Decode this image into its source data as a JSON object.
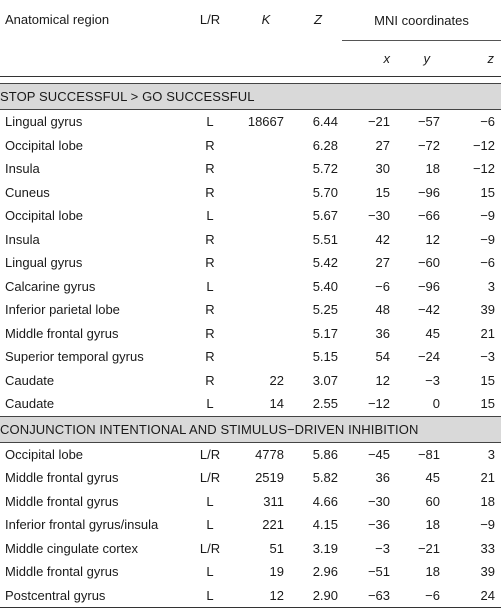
{
  "header": {
    "region": "Anatomical region",
    "lr": "L/R",
    "k": "K",
    "z": "Z",
    "mni": "MNI coordinates",
    "x": "x",
    "y": "y",
    "zc": "z"
  },
  "sections": [
    {
      "title": "STOP SUCCESSFUL > GO SUCCESSFUL",
      "rows": [
        {
          "region": "Lingual gyrus",
          "lr": "L",
          "k": "18667",
          "z": "6.44",
          "x": "−21",
          "y": "−57",
          "zc": "−6"
        },
        {
          "region": "Occipital lobe",
          "lr": "R",
          "k": "",
          "z": "6.28",
          "x": "27",
          "y": "−72",
          "zc": "−12"
        },
        {
          "region": "Insula",
          "lr": "R",
          "k": "",
          "z": "5.72",
          "x": "30",
          "y": "18",
          "zc": "−12"
        },
        {
          "region": "Cuneus",
          "lr": "R",
          "k": "",
          "z": "5.70",
          "x": "15",
          "y": "−96",
          "zc": "15"
        },
        {
          "region": "Occipital lobe",
          "lr": "L",
          "k": "",
          "z": "5.67",
          "x": "−30",
          "y": "−66",
          "zc": "−9"
        },
        {
          "region": "Insula",
          "lr": "R",
          "k": "",
          "z": "5.51",
          "x": "42",
          "y": "12",
          "zc": "−9"
        },
        {
          "region": "Lingual gyrus",
          "lr": "R",
          "k": "",
          "z": "5.42",
          "x": "27",
          "y": "−60",
          "zc": "−6"
        },
        {
          "region": "Calcarine gyrus",
          "lr": "L",
          "k": "",
          "z": "5.40",
          "x": "−6",
          "y": "−96",
          "zc": "3"
        },
        {
          "region": "Inferior parietal lobe",
          "lr": "R",
          "k": "",
          "z": "5.25",
          "x": "48",
          "y": "−42",
          "zc": "39"
        },
        {
          "region": "Middle frontal gyrus",
          "lr": "R",
          "k": "",
          "z": "5.17",
          "x": "36",
          "y": "45",
          "zc": "21"
        },
        {
          "region": "Superior temporal gyrus",
          "lr": "R",
          "k": "",
          "z": "5.15",
          "x": "54",
          "y": "−24",
          "zc": "−3"
        },
        {
          "region": "Caudate",
          "lr": "R",
          "k": "22",
          "z": "3.07",
          "x": "12",
          "y": "−3",
          "zc": "15"
        },
        {
          "region": "Caudate",
          "lr": "L",
          "k": "14",
          "z": "2.55",
          "x": "−12",
          "y": "0",
          "zc": "15"
        }
      ]
    },
    {
      "title": "CONJUNCTION INTENTIONAL AND STIMULUS−DRIVEN INHIBITION",
      "rows": [
        {
          "region": "Occipital lobe",
          "lr": "L/R",
          "k": "4778",
          "z": "5.86",
          "x": "−45",
          "y": "−81",
          "zc": "3"
        },
        {
          "region": "Middle frontal gyrus",
          "lr": "L/R",
          "k": "2519",
          "z": "5.82",
          "x": "36",
          "y": "45",
          "zc": "21"
        },
        {
          "region": "Middle frontal gyrus",
          "lr": "L",
          "k": "311",
          "z": "4.66",
          "x": "−30",
          "y": "60",
          "zc": "18"
        },
        {
          "region": "Inferior frontal gyrus/insula",
          "lr": "L",
          "k": "221",
          "z": "4.15",
          "x": "−36",
          "y": "18",
          "zc": "−9"
        },
        {
          "region": "Middle cingulate cortex",
          "lr": "L/R",
          "k": "51",
          "z": "3.19",
          "x": "−3",
          "y": "−21",
          "zc": "33"
        },
        {
          "region": "Middle frontal gyrus",
          "lr": "L",
          "k": "19",
          "z": "2.96",
          "x": "−51",
          "y": "18",
          "zc": "39"
        },
        {
          "region": "Postcentral gyrus",
          "lr": "L",
          "k": "12",
          "z": "2.90",
          "x": "−63",
          "y": "−6",
          "zc": "24"
        }
      ]
    }
  ]
}
